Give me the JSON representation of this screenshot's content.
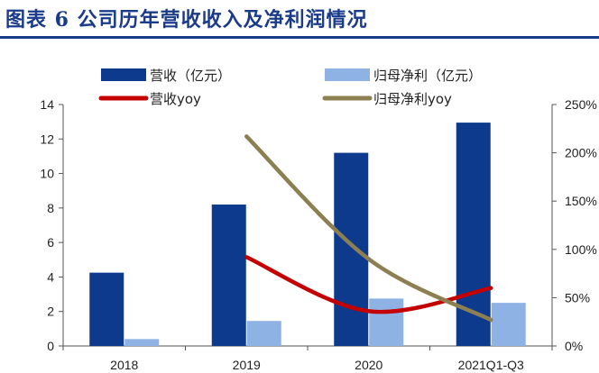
{
  "figure_title": "图表 6   公司历年营收收入及净利润情况",
  "chart_data": {
    "type": "bar",
    "title": "",
    "categories": [
      "2018",
      "2019",
      "2020",
      "2021Q1-Q3"
    ],
    "series": [
      {
        "name": "营收（亿元）",
        "type": "bar",
        "axis": "left",
        "color": "#0d3a8c",
        "values": [
          4.25,
          8.2,
          11.2,
          12.95
        ]
      },
      {
        "name": "归母净利（亿元）",
        "type": "bar",
        "axis": "left",
        "color": "#8db2e3",
        "values": [
          0.4,
          1.45,
          2.75,
          2.5
        ]
      },
      {
        "name": "营收yoy",
        "type": "line",
        "axis": "right",
        "color": "#c40000",
        "values": [
          null,
          92,
          36,
          60
        ]
      },
      {
        "name": "归母净利yoy",
        "type": "line",
        "axis": "right",
        "color": "#8c7f52",
        "values": [
          null,
          217,
          90,
          27
        ]
      }
    ],
    "left_axis": {
      "min": 0,
      "max": 14,
      "ticks": [
        "0",
        "2",
        "4",
        "6",
        "8",
        "10",
        "12",
        "14"
      ]
    },
    "right_axis": {
      "min": 0,
      "max": 250,
      "ticks": [
        "0%",
        "50%",
        "100%",
        "150%",
        "200%",
        "250%"
      ]
    },
    "grid": false,
    "legend_position": "top"
  }
}
